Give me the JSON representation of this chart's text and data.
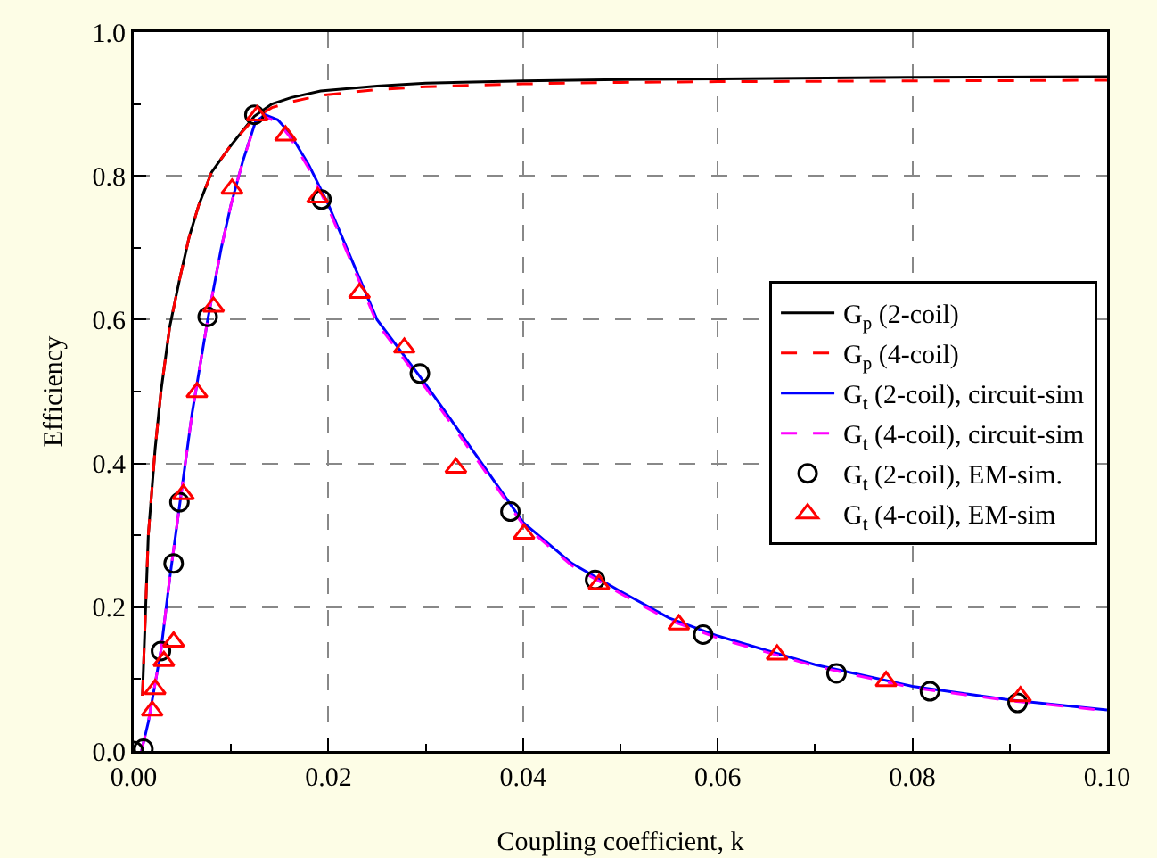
{
  "chart_data": {
    "type": "line",
    "xlabel": "Coupling coefficient, k",
    "ylabel": "Efficiency",
    "xlim": [
      0,
      0.1
    ],
    "ylim": [
      0,
      1
    ],
    "xticks": [
      {
        "value": 0,
        "label": "0.00"
      },
      {
        "value": 0.02,
        "label": "0.02"
      },
      {
        "value": 0.04,
        "label": "0.04"
      },
      {
        "value": 0.06,
        "label": "0.06"
      },
      {
        "value": 0.08,
        "label": "0.08"
      },
      {
        "value": 0.1,
        "label": "0.10"
      }
    ],
    "yticks": [
      {
        "value": 0,
        "label": "0.0"
      },
      {
        "value": 0.2,
        "label": "0.2"
      },
      {
        "value": 0.4,
        "label": "0.4"
      },
      {
        "value": 0.6,
        "label": "0.6"
      },
      {
        "value": 0.8,
        "label": "0.8"
      },
      {
        "value": 1,
        "label": "1.0"
      }
    ],
    "grid": true,
    "legend": "right",
    "marker": "none",
    "series": [
      {
        "name": "G$_{p}$ (2-coil)",
        "line_style": "solid",
        "color": "#000000",
        "x": [
          0.0009,
          0.0015,
          0.0022,
          0.0028,
          0.0037,
          0.0047,
          0.0057,
          0.0067,
          0.008,
          0.0098,
          0.0112,
          0.0124,
          0.0142,
          0.0162,
          0.0192,
          0.025,
          0.03,
          0.04,
          0.05,
          0.06,
          0.08,
          0.1
        ],
        "values": [
          0.077,
          0.3,
          0.42,
          0.5,
          0.59,
          0.655,
          0.715,
          0.76,
          0.805,
          0.839,
          0.863,
          0.883,
          0.9,
          0.909,
          0.918,
          0.925,
          0.929,
          0.932,
          0.934,
          0.935,
          0.937,
          0.938
        ]
      },
      {
        "name": "G$_{p}$ (4-coil)",
        "line_style": "dashed",
        "color": "#ff0000",
        "x": [
          0.0009,
          0.0015,
          0.0022,
          0.0028,
          0.0037,
          0.0047,
          0.0057,
          0.0067,
          0.008,
          0.0098,
          0.0112,
          0.0124,
          0.0142,
          0.0162,
          0.0192,
          0.025,
          0.03,
          0.04,
          0.05,
          0.06,
          0.08,
          0.1
        ],
        "values": [
          0.077,
          0.3,
          0.42,
          0.5,
          0.59,
          0.655,
          0.715,
          0.76,
          0.805,
          0.839,
          0.862,
          0.88,
          0.895,
          0.903,
          0.912,
          0.92,
          0.924,
          0.928,
          0.93,
          0.931,
          0.932,
          0.933
        ]
      },
      {
        "name": "G$_{t}$ (2-coil), circuit-sim",
        "line_style": "solid",
        "color": "#0000ff",
        "x": [
          0.0008,
          0.0015,
          0.0028,
          0.0037,
          0.0047,
          0.006,
          0.0076,
          0.009,
          0.01,
          0.0112,
          0.0125,
          0.0135,
          0.0148,
          0.016,
          0.018,
          0.02,
          0.025,
          0.03,
          0.035,
          0.04,
          0.045,
          0.05,
          0.055,
          0.06,
          0.07,
          0.08,
          0.09,
          0.1
        ],
        "values": [
          0,
          0.04,
          0.14,
          0.24,
          0.34,
          0.47,
          0.6,
          0.7,
          0.76,
          0.82,
          0.875,
          0.885,
          0.878,
          0.86,
          0.815,
          0.76,
          0.6,
          0.51,
          0.415,
          0.318,
          0.261,
          0.222,
          0.185,
          0.16,
          0.12,
          0.09,
          0.071,
          0.057
        ]
      },
      {
        "name": "G$_{t}$ (4-coil), circuit-sim",
        "line_style": "dashed",
        "color": "#ff00ff",
        "x": [
          0.0008,
          0.0015,
          0.0028,
          0.0037,
          0.0047,
          0.006,
          0.0076,
          0.009,
          0.01,
          0.0112,
          0.0125,
          0.0135,
          0.0148,
          0.016,
          0.018,
          0.02,
          0.025,
          0.03,
          0.035,
          0.04,
          0.045,
          0.05,
          0.055,
          0.06,
          0.07,
          0.08,
          0.09,
          0.1
        ],
        "values": [
          0,
          0.04,
          0.14,
          0.24,
          0.34,
          0.47,
          0.6,
          0.7,
          0.76,
          0.82,
          0.873,
          0.882,
          0.875,
          0.855,
          0.81,
          0.755,
          0.595,
          0.505,
          0.41,
          0.315,
          0.258,
          0.219,
          0.182,
          0.157,
          0.118,
          0.088,
          0.07,
          0.056
        ]
      },
      {
        "name": "G$_{t}$ (2-coil), EM-sim.",
        "type": "scatter",
        "marker": "circle",
        "color": "#000000",
        "x": [
          0,
          0.001,
          0.0028,
          0.0041,
          0.0047,
          0.0076,
          0.0124,
          0.0193,
          0.0294,
          0.0387,
          0.0474,
          0.0585,
          0.0722,
          0.0818,
          0.0908
        ],
        "values": [
          0,
          0.003,
          0.139,
          0.261,
          0.346,
          0.604,
          0.885,
          0.767,
          0.525,
          0.333,
          0.238,
          0.162,
          0.108,
          0.083,
          0.067
        ]
      },
      {
        "name": "G$_{t}$ (4-coil), EM-sim",
        "type": "scatter",
        "marker": "triangle",
        "color": "#ff0000",
        "x": [
          0.0019,
          0.0022,
          0.0031,
          0.0041,
          0.0051,
          0.0065,
          0.0082,
          0.0101,
          0.0127,
          0.0156,
          0.0189,
          0.0232,
          0.0278,
          0.0331,
          0.0401,
          0.0478,
          0.056,
          0.0661,
          0.0773,
          0.0911
        ],
        "values": [
          0.056,
          0.086,
          0.125,
          0.152,
          0.357,
          0.499,
          0.618,
          0.782,
          0.884,
          0.856,
          0.77,
          0.637,
          0.561,
          0.394,
          0.302,
          0.232,
          0.176,
          0.134,
          0.097,
          0.076
        ]
      }
    ]
  }
}
